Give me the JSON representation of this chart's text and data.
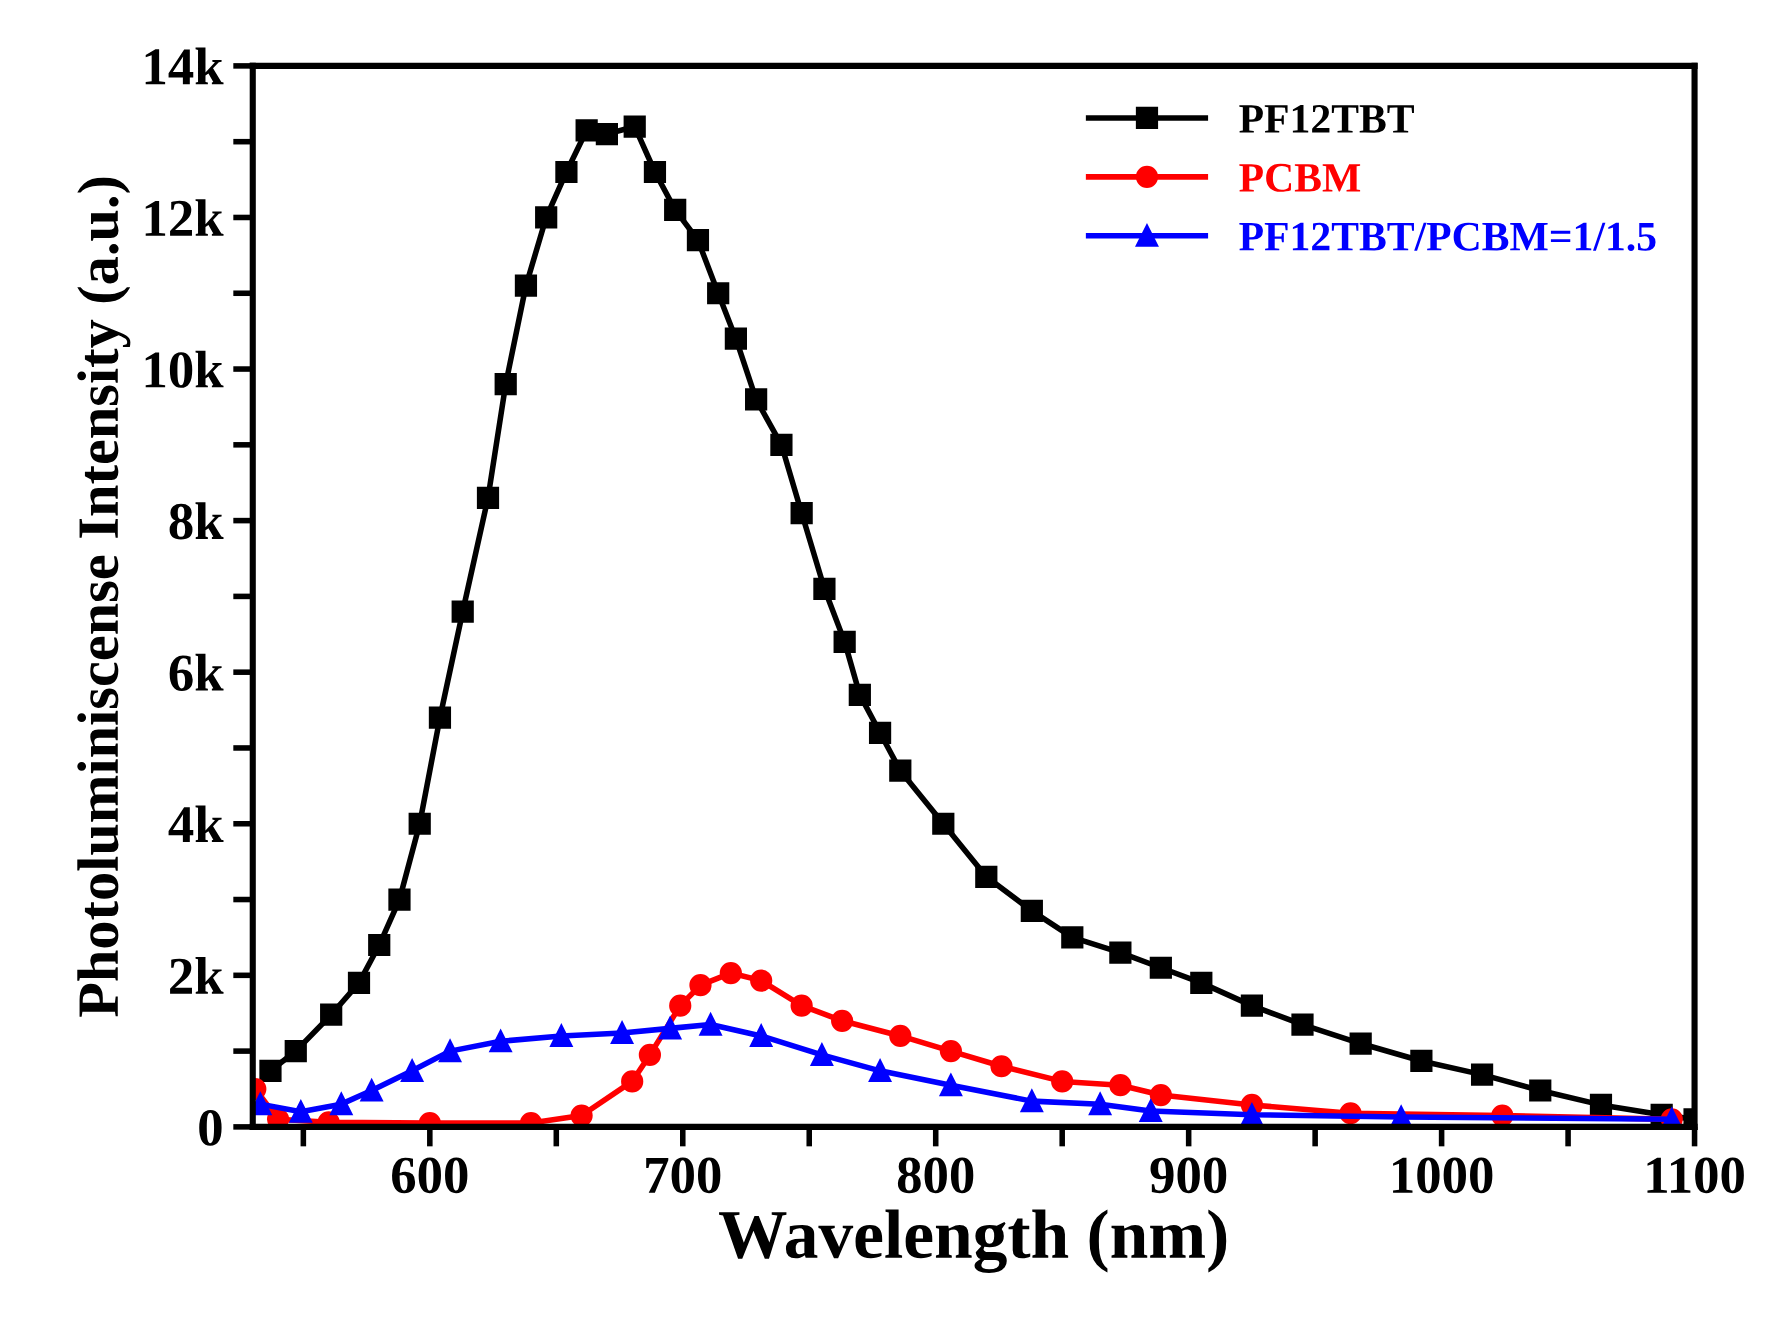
{
  "chart_data": {
    "type": "line",
    "xlabel": "Wavelength (nm)",
    "ylabel": "Photoluminiscense Intensity (a.u.)",
    "xlim": [
      530,
      1100
    ],
    "xticks": [
      {
        "value": 550,
        "label": null
      },
      600,
      {
        "value": 650,
        "label": null
      },
      700,
      {
        "value": 750,
        "label": null
      },
      800,
      {
        "value": 850,
        "label": null
      },
      900,
      {
        "value": 950,
        "label": null
      },
      1000,
      {
        "value": 1050,
        "label": null
      },
      1100
    ],
    "ylim": [
      0,
      14000
    ],
    "yticks": [
      {
        "value": 0,
        "label": "0"
      },
      {
        "value": 1000,
        "label": null
      },
      {
        "value": 2000,
        "label": "2k"
      },
      {
        "value": 3000,
        "label": null
      },
      {
        "value": 4000,
        "label": "4k"
      },
      {
        "value": 5000,
        "label": null
      },
      {
        "value": 6000,
        "label": "6k"
      },
      {
        "value": 7000,
        "label": null
      },
      {
        "value": 8000,
        "label": "8k"
      },
      {
        "value": 9000,
        "label": null
      },
      {
        "value": 10000,
        "label": "10k"
      },
      {
        "value": 11000,
        "label": null
      },
      {
        "value": 12000,
        "label": "12k"
      },
      {
        "value": 13000,
        "label": null
      },
      {
        "value": 14000,
        "label": "14k"
      }
    ],
    "grid": false,
    "legend": "top right",
    "series": [
      {
        "name": "PF12TBT",
        "color": "#000000",
        "marker": "square",
        "x": [
          537,
          547,
          561,
          572,
          580,
          588,
          596,
          604,
          613,
          623,
          630,
          638,
          646,
          654,
          662,
          670,
          681,
          689,
          697,
          706,
          714,
          721,
          729,
          739,
          747,
          756,
          764,
          770,
          778,
          786,
          803,
          820,
          838,
          854,
          873,
          889,
          905,
          925,
          945,
          968,
          992,
          1016,
          1039,
          1063,
          1087,
          1100
        ],
        "values": [
          740,
          1000,
          1480,
          1900,
          2400,
          3000,
          4000,
          5400,
          6800,
          8300,
          9800,
          11100,
          12000,
          12600,
          13150,
          13100,
          13200,
          12600,
          12100,
          11700,
          11000,
          10400,
          9600,
          9000,
          8100,
          7100,
          6400,
          5700,
          5200,
          4700,
          4000,
          3300,
          2850,
          2500,
          2300,
          2100,
          1900,
          1600,
          1350,
          1100,
          870,
          690,
          480,
          290,
          160,
          100
        ]
      },
      {
        "name": "PCBM",
        "color": "#ff0000",
        "marker": "circle",
        "x": [
          531,
          540,
          560,
          600,
          640,
          660,
          680,
          687,
          699,
          707,
          719,
          731,
          747,
          763,
          786,
          806,
          826,
          850,
          873,
          889,
          925,
          964,
          1024,
          1091
        ],
        "values": [
          500,
          100,
          60,
          50,
          50,
          150,
          600,
          950,
          1600,
          1870,
          2030,
          1930,
          1600,
          1400,
          1200,
          1000,
          800,
          600,
          550,
          420,
          290,
          180,
          150,
          100
        ]
      },
      {
        "name": "PF12TBT/PCBM=1/1.5",
        "color": "#0000ff",
        "marker": "triangle",
        "x": [
          533,
          549,
          565,
          577,
          593,
          608,
          628,
          652,
          676,
          695,
          711,
          731,
          755,
          778,
          806,
          838,
          865,
          885,
          925,
          984,
          1091
        ],
        "values": [
          300,
          200,
          300,
          480,
          740,
          1000,
          1130,
          1200,
          1240,
          1300,
          1350,
          1200,
          950,
          740,
          550,
          340,
          300,
          210,
          160,
          130,
          100
        ]
      }
    ]
  }
}
